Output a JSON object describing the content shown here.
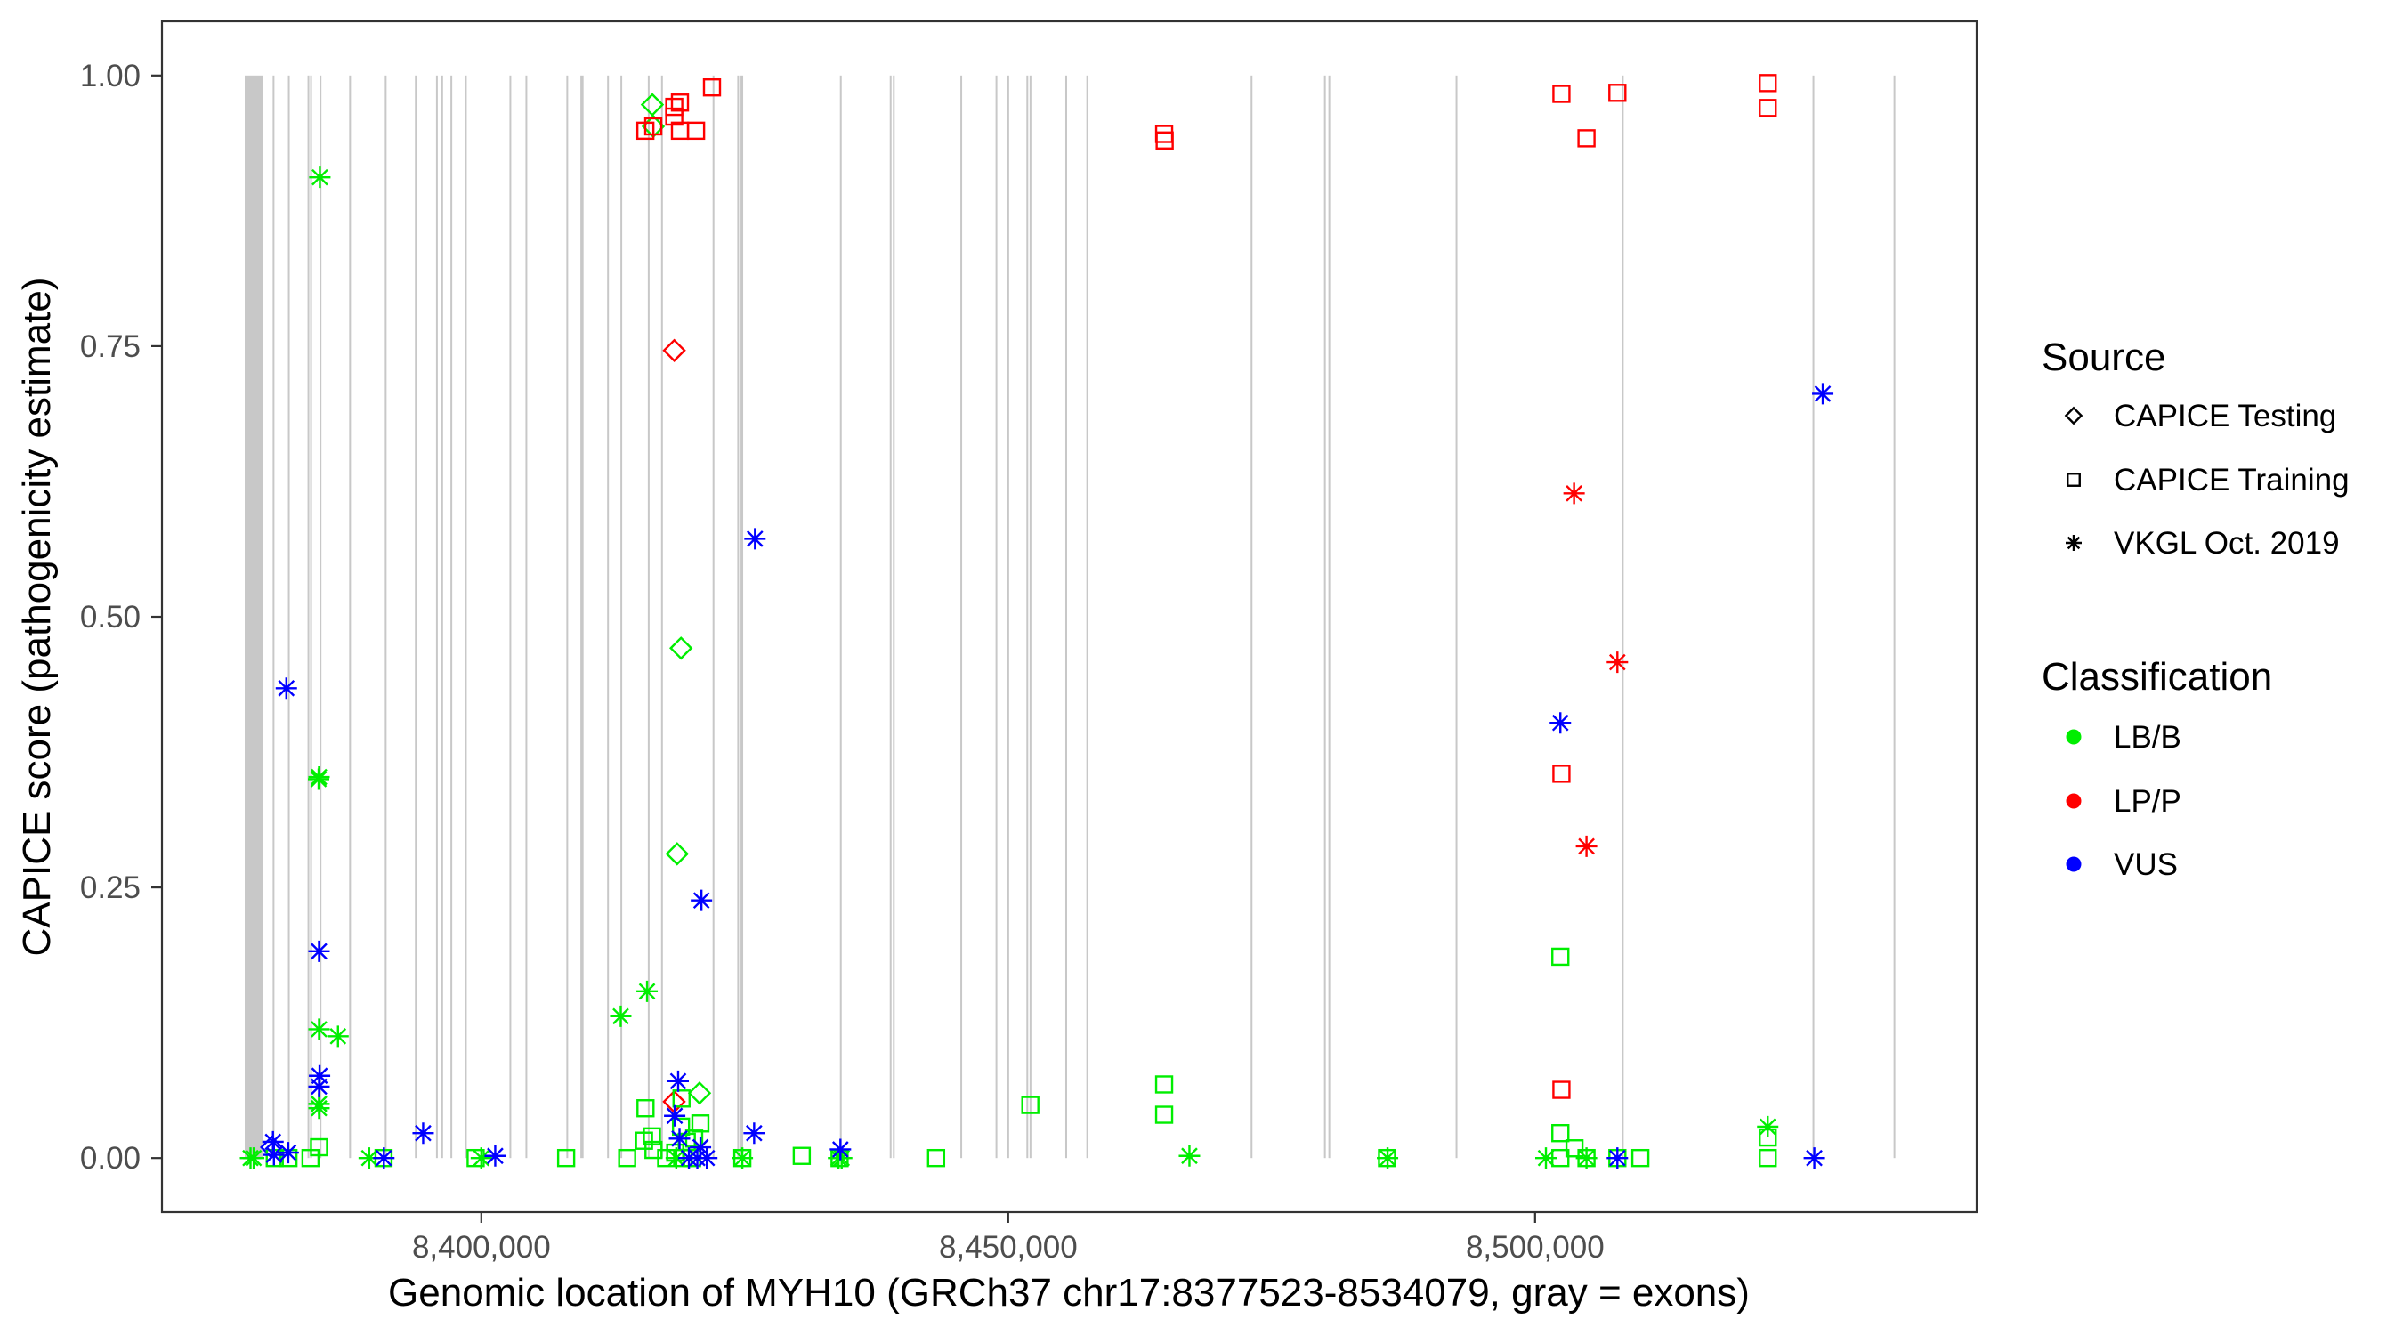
{
  "chart_data": {
    "type": "scatter",
    "xlabel": "Genomic location of MYH10 (GRCh37 chr17:8377523-8534079, gray = exons)",
    "ylabel": "CAPICE score (pathogenicity estimate)",
    "xlim": [
      8369695,
      8541907
    ],
    "ylim": [
      -0.05,
      1.05
    ],
    "x_ticks": [
      8400000,
      8450000,
      8500000
    ],
    "x_tick_labels": [
      "8,400,000",
      "8,450,000",
      "8,500,000"
    ],
    "y_ticks": [
      0,
      0.25,
      0.5,
      0.75,
      1.0
    ],
    "y_tick_labels": [
      "0.00",
      "0.25",
      "0.50",
      "0.75",
      "1.00"
    ],
    "grid": false,
    "exon_color": "#c8c8c8",
    "exons": [
      [
        8377550,
        8379240
      ],
      [
        8380200,
        8380260
      ],
      [
        8381650,
        8381710
      ],
      [
        8383510,
        8383570
      ],
      [
        8383760,
        8383820
      ],
      [
        8384660,
        8384720
      ],
      [
        8387460,
        8387520
      ],
      [
        8390840,
        8390900
      ],
      [
        8393700,
        8393760
      ],
      [
        8395700,
        8395800
      ],
      [
        8396200,
        8396300
      ],
      [
        8397070,
        8397130
      ],
      [
        8398450,
        8398510
      ],
      [
        8402670,
        8402730
      ],
      [
        8404190,
        8404250
      ],
      [
        8408070,
        8408130
      ],
      [
        8409400,
        8409700
      ],
      [
        8411940,
        8412000
      ],
      [
        8413200,
        8413260
      ],
      [
        8415800,
        8415920
      ],
      [
        8417060,
        8417120
      ],
      [
        8421950,
        8422100
      ],
      [
        8424290,
        8424350
      ],
      [
        8424600,
        8424850
      ],
      [
        8434030,
        8434090
      ],
      [
        8438760,
        8438820
      ],
      [
        8439060,
        8439120
      ],
      [
        8445460,
        8445540
      ],
      [
        8448800,
        8448880
      ],
      [
        8449920,
        8449980
      ],
      [
        8451730,
        8451790
      ],
      [
        8452030,
        8452090
      ],
      [
        8455420,
        8455480
      ],
      [
        8457420,
        8457540
      ],
      [
        8473010,
        8473070
      ],
      [
        8479970,
        8480030
      ],
      [
        8480390,
        8480450
      ],
      [
        8492460,
        8492520
      ],
      [
        8508240,
        8508300
      ],
      [
        8526330,
        8526450
      ],
      [
        8534020,
        8534079
      ]
    ],
    "legend": {
      "placement": "right",
      "source_title": "Source",
      "sources": [
        {
          "name": "CAPICE Testing",
          "shape": "diamond"
        },
        {
          "name": "CAPICE Training",
          "shape": "square"
        },
        {
          "name": "VKGL Oct. 2019",
          "shape": "asterisk"
        }
      ],
      "class_title": "Classification",
      "classes": [
        {
          "name": "LB/B",
          "color": "#00ee00"
        },
        {
          "name": "LP/P",
          "color": "#ff0000"
        },
        {
          "name": "VUS",
          "color": "#0000ff"
        }
      ]
    },
    "points": [
      [
        8416230,
        0.973,
        "CAPICE Testing",
        "LB/B"
      ],
      [
        8416320,
        0.953,
        "CAPICE Testing",
        "LB/B"
      ],
      [
        8418310,
        0.746,
        "CAPICE Testing",
        "LP/P"
      ],
      [
        8418950,
        0.471,
        "CAPICE Testing",
        "LB/B"
      ],
      [
        8418580,
        0.281,
        "CAPICE Testing",
        "LB/B"
      ],
      [
        8420710,
        0.06,
        "CAPICE Testing",
        "LB/B"
      ],
      [
        8418300,
        0.052,
        "CAPICE Testing",
        "LP/P"
      ],
      [
        8380100,
        0.01,
        "CAPICE Testing",
        "VUS"
      ],
      [
        8415570,
        0.949,
        "CAPICE Training",
        "LP/P"
      ],
      [
        8416320,
        0.953,
        "CAPICE Training",
        "LP/P"
      ],
      [
        8418310,
        0.971,
        "CAPICE Training",
        "LP/P"
      ],
      [
        8418850,
        0.975,
        "CAPICE Training",
        "LP/P"
      ],
      [
        8418310,
        0.962,
        "CAPICE Training",
        "LP/P"
      ],
      [
        8418850,
        0.949,
        "CAPICE Training",
        "LP/P"
      ],
      [
        8420380,
        0.949,
        "CAPICE Training",
        "LP/P"
      ],
      [
        8421890,
        0.989,
        "CAPICE Training",
        "LP/P"
      ],
      [
        8464800,
        0.946,
        "CAPICE Training",
        "LP/P"
      ],
      [
        8464850,
        0.94,
        "CAPICE Training",
        "LP/P"
      ],
      [
        8502500,
        0.983,
        "CAPICE Training",
        "LP/P"
      ],
      [
        8507810,
        0.984,
        "CAPICE Training",
        "LP/P"
      ],
      [
        8504880,
        0.942,
        "CAPICE Training",
        "LP/P"
      ],
      [
        8522080,
        0.993,
        "CAPICE Training",
        "LP/P"
      ],
      [
        8522080,
        0.97,
        "CAPICE Training",
        "LP/P"
      ],
      [
        8502500,
        0.355,
        "CAPICE Training",
        "LP/P"
      ],
      [
        8502500,
        0.063,
        "CAPICE Training",
        "LP/P"
      ],
      [
        8380400,
        0,
        "CAPICE Training",
        "LB/B"
      ],
      [
        8381700,
        0,
        "CAPICE Training",
        "LB/B"
      ],
      [
        8383790,
        0,
        "CAPICE Training",
        "LB/B"
      ],
      [
        8384600,
        0.01,
        "CAPICE Training",
        "LB/B"
      ],
      [
        8390720,
        0,
        "CAPICE Training",
        "LB/B"
      ],
      [
        8399460,
        0,
        "CAPICE Training",
        "LB/B"
      ],
      [
        8408050,
        0,
        "CAPICE Training",
        "LB/B"
      ],
      [
        8413840,
        0,
        "CAPICE Training",
        "LB/B"
      ],
      [
        8415580,
        0.046,
        "CAPICE Training",
        "LB/B"
      ],
      [
        8415440,
        0.016,
        "CAPICE Training",
        "LB/B"
      ],
      [
        8416190,
        0.02,
        "CAPICE Training",
        "LB/B"
      ],
      [
        8416340,
        0.0075,
        "CAPICE Training",
        "LB/B"
      ],
      [
        8417540,
        0,
        "CAPICE Training",
        "LB/B"
      ],
      [
        8419000,
        0.055,
        "CAPICE Training",
        "LB/B"
      ],
      [
        8418950,
        0.029,
        "CAPICE Training",
        "LB/B"
      ],
      [
        8420790,
        0.032,
        "CAPICE Training",
        "LB/B"
      ],
      [
        8419500,
        0.015,
        "CAPICE Training",
        "LB/B"
      ],
      [
        8420200,
        0.018,
        "CAPICE Training",
        "LB/B"
      ],
      [
        8418400,
        0.005,
        "CAPICE Training",
        "LB/B"
      ],
      [
        8419200,
        0,
        "CAPICE Training",
        "LB/B"
      ],
      [
        8420000,
        0,
        "CAPICE Training",
        "LB/B"
      ],
      [
        8424770,
        0,
        "CAPICE Training",
        "LB/B"
      ],
      [
        8430410,
        0.002,
        "CAPICE Training",
        "LB/B"
      ],
      [
        8434000,
        0,
        "CAPICE Training",
        "LB/B"
      ],
      [
        8443160,
        0,
        "CAPICE Training",
        "LB/B"
      ],
      [
        8452100,
        0.049,
        "CAPICE Training",
        "LB/B"
      ],
      [
        8464800,
        0.068,
        "CAPICE Training",
        "LB/B"
      ],
      [
        8464800,
        0.04,
        "CAPICE Training",
        "LB/B"
      ],
      [
        8485950,
        0,
        "CAPICE Training",
        "LB/B"
      ],
      [
        8502400,
        0.186,
        "CAPICE Training",
        "LB/B"
      ],
      [
        8502400,
        0.023,
        "CAPICE Training",
        "LB/B"
      ],
      [
        8502400,
        0,
        "CAPICE Training",
        "LB/B"
      ],
      [
        8503740,
        0.009,
        "CAPICE Training",
        "LB/B"
      ],
      [
        8504880,
        0,
        "CAPICE Training",
        "LB/B"
      ],
      [
        8507810,
        0,
        "CAPICE Training",
        "LB/B"
      ],
      [
        8509990,
        0,
        "CAPICE Training",
        "LB/B"
      ],
      [
        8522080,
        0.019,
        "CAPICE Training",
        "LB/B"
      ],
      [
        8522080,
        0,
        "CAPICE Training",
        "LB/B"
      ],
      [
        8378100,
        0,
        "VKGL Oct. 2019",
        "LB/B"
      ],
      [
        8378400,
        0,
        "VKGL Oct. 2019",
        "LB/B"
      ],
      [
        8384680,
        0.906,
        "VKGL Oct. 2019",
        "LB/B"
      ],
      [
        8384560,
        0.35,
        "VKGL Oct. 2019",
        "LB/B"
      ],
      [
        8384600,
        0.352,
        "VKGL Oct. 2019",
        "LB/B"
      ],
      [
        8384600,
        0.119,
        "VKGL Oct. 2019",
        "LB/B"
      ],
      [
        8386400,
        0.1125,
        "VKGL Oct. 2019",
        "LB/B"
      ],
      [
        8384600,
        0.046,
        "VKGL Oct. 2019",
        "LB/B"
      ],
      [
        8384600,
        0.05,
        "VKGL Oct. 2019",
        "LB/B"
      ],
      [
        8389360,
        0,
        "VKGL Oct. 2019",
        "LB/B"
      ],
      [
        8400000,
        0,
        "VKGL Oct. 2019",
        "LB/B"
      ],
      [
        8413230,
        0.131,
        "VKGL Oct. 2019",
        "LB/B"
      ],
      [
        8415730,
        0.154,
        "VKGL Oct. 2019",
        "LB/B"
      ],
      [
        8418500,
        0,
        "VKGL Oct. 2019",
        "LB/B"
      ],
      [
        8424770,
        0,
        "VKGL Oct. 2019",
        "LB/B"
      ],
      [
        8433900,
        0,
        "VKGL Oct. 2019",
        "LB/B"
      ],
      [
        8434200,
        0,
        "VKGL Oct. 2019",
        "LB/B"
      ],
      [
        8467200,
        0.002,
        "VKGL Oct. 2019",
        "LB/B"
      ],
      [
        8486000,
        0,
        "VKGL Oct. 2019",
        "LB/B"
      ],
      [
        8501030,
        0,
        "VKGL Oct. 2019",
        "LB/B"
      ],
      [
        8504880,
        0,
        "VKGL Oct. 2019",
        "LB/B"
      ],
      [
        8522080,
        0.029,
        "VKGL Oct. 2019",
        "LB/B"
      ],
      [
        8380230,
        0.015,
        "VKGL Oct. 2019",
        "VUS"
      ],
      [
        8380320,
        0.003,
        "VKGL Oct. 2019",
        "VUS"
      ],
      [
        8381680,
        0.005,
        "VKGL Oct. 2019",
        "VUS"
      ],
      [
        8381500,
        0.434,
        "VKGL Oct. 2019",
        "VUS"
      ],
      [
        8384600,
        0.191,
        "VKGL Oct. 2019",
        "VUS"
      ],
      [
        8384650,
        0.076,
        "VKGL Oct. 2019",
        "VUS"
      ],
      [
        8384600,
        0.066,
        "VKGL Oct. 2019",
        "VUS"
      ],
      [
        8390750,
        0,
        "VKGL Oct. 2019",
        "VUS"
      ],
      [
        8394480,
        0.023,
        "VKGL Oct. 2019",
        "VUS"
      ],
      [
        8401320,
        0.002,
        "VKGL Oct. 2019",
        "VUS"
      ],
      [
        8418680,
        0.071,
        "VKGL Oct. 2019",
        "VUS"
      ],
      [
        8418350,
        0.039,
        "VKGL Oct. 2019",
        "VUS"
      ],
      [
        8418810,
        0.018,
        "VKGL Oct. 2019",
        "VUS"
      ],
      [
        8419700,
        0,
        "VKGL Oct. 2019",
        "VUS"
      ],
      [
        8420500,
        0,
        "VKGL Oct. 2019",
        "VUS"
      ],
      [
        8421400,
        0,
        "VKGL Oct. 2019",
        "VUS"
      ],
      [
        8420800,
        0.01,
        "VKGL Oct. 2019",
        "VUS"
      ],
      [
        8420890,
        0.238,
        "VKGL Oct. 2019",
        "VUS"
      ],
      [
        8425970,
        0.572,
        "VKGL Oct. 2019",
        "VUS"
      ],
      [
        8425890,
        0.023,
        "VKGL Oct. 2019",
        "VUS"
      ],
      [
        8434080,
        0.008,
        "VKGL Oct. 2019",
        "VUS"
      ],
      [
        8502400,
        0.402,
        "VKGL Oct. 2019",
        "VUS"
      ],
      [
        8507810,
        0,
        "VKGL Oct. 2019",
        "VUS"
      ],
      [
        8526500,
        0,
        "VKGL Oct. 2019",
        "VUS"
      ],
      [
        8527300,
        0.706,
        "VKGL Oct. 2019",
        "VUS"
      ],
      [
        8503700,
        0.614,
        "VKGL Oct. 2019",
        "LP/P"
      ],
      [
        8507810,
        0.458,
        "VKGL Oct. 2019",
        "LP/P"
      ],
      [
        8504880,
        0.288,
        "VKGL Oct. 2019",
        "LP/P"
      ]
    ]
  }
}
